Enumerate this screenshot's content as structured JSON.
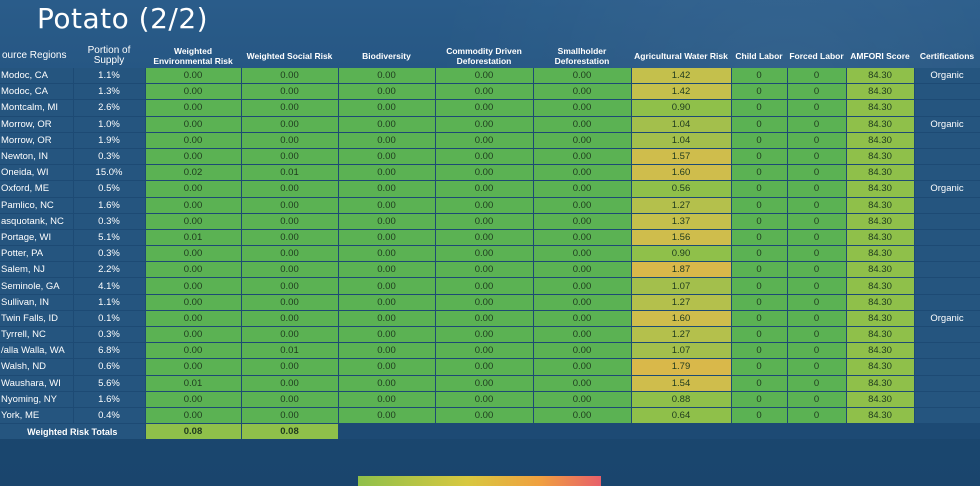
{
  "title": "Potato (2/2)",
  "headers": {
    "region": "ource Regions",
    "portion": "Portion of Supply",
    "env": "Weighted Environmental Risk",
    "social": "Weighted Social Risk",
    "bio": "Biodiversity",
    "cdd": "Commodity Driven Deforestation",
    "sd": "Smallholder Deforestation",
    "water": "Agricultural Water Risk",
    "child": "Child Labor",
    "forced": "Forced Labor",
    "amfori": "AMFORI Score",
    "cert": "Certifications"
  },
  "rows": [
    {
      "region": "Modoc, CA",
      "portion": "1.1%",
      "env": "0.00",
      "social": "0.00",
      "bio": "0.00",
      "cdd": "0.00",
      "sd": "0.00",
      "water": "1.42",
      "child": "0",
      "forced": "0",
      "amfori": "84.30",
      "cert": "Organic"
    },
    {
      "region": "Modoc, CA",
      "portion": "1.3%",
      "env": "0.00",
      "social": "0.00",
      "bio": "0.00",
      "cdd": "0.00",
      "sd": "0.00",
      "water": "1.42",
      "child": "0",
      "forced": "0",
      "amfori": "84.30",
      "cert": ""
    },
    {
      "region": "Montcalm, MI",
      "portion": "2.6%",
      "env": "0.00",
      "social": "0.00",
      "bio": "0.00",
      "cdd": "0.00",
      "sd": "0.00",
      "water": "0.90",
      "child": "0",
      "forced": "0",
      "amfori": "84.30",
      "cert": ""
    },
    {
      "region": "Morrow, OR",
      "portion": "1.0%",
      "env": "0.00",
      "social": "0.00",
      "bio": "0.00",
      "cdd": "0.00",
      "sd": "0.00",
      "water": "1.04",
      "child": "0",
      "forced": "0",
      "amfori": "84.30",
      "cert": "Organic"
    },
    {
      "region": "Morrow, OR",
      "portion": "1.9%",
      "env": "0.00",
      "social": "0.00",
      "bio": "0.00",
      "cdd": "0.00",
      "sd": "0.00",
      "water": "1.04",
      "child": "0",
      "forced": "0",
      "amfori": "84.30",
      "cert": ""
    },
    {
      "region": "Newton, IN",
      "portion": "0.3%",
      "env": "0.00",
      "social": "0.00",
      "bio": "0.00",
      "cdd": "0.00",
      "sd": "0.00",
      "water": "1.57",
      "child": "0",
      "forced": "0",
      "amfori": "84.30",
      "cert": ""
    },
    {
      "region": "Oneida, WI",
      "portion": "15.0%",
      "env": "0.02",
      "social": "0.01",
      "bio": "0.00",
      "cdd": "0.00",
      "sd": "0.00",
      "water": "1.60",
      "child": "0",
      "forced": "0",
      "amfori": "84.30",
      "cert": ""
    },
    {
      "region": "Oxford, ME",
      "portion": "0.5%",
      "env": "0.00",
      "social": "0.00",
      "bio": "0.00",
      "cdd": "0.00",
      "sd": "0.00",
      "water": "0.56",
      "child": "0",
      "forced": "0",
      "amfori": "84.30",
      "cert": "Organic"
    },
    {
      "region": "Pamlico, NC",
      "portion": "1.6%",
      "env": "0.00",
      "social": "0.00",
      "bio": "0.00",
      "cdd": "0.00",
      "sd": "0.00",
      "water": "1.27",
      "child": "0",
      "forced": "0",
      "amfori": "84.30",
      "cert": ""
    },
    {
      "region": "asquotank, NC",
      "portion": "0.3%",
      "env": "0.00",
      "social": "0.00",
      "bio": "0.00",
      "cdd": "0.00",
      "sd": "0.00",
      "water": "1.37",
      "child": "0",
      "forced": "0",
      "amfori": "84.30",
      "cert": ""
    },
    {
      "region": "Portage, WI",
      "portion": "5.1%",
      "env": "0.01",
      "social": "0.00",
      "bio": "0.00",
      "cdd": "0.00",
      "sd": "0.00",
      "water": "1.56",
      "child": "0",
      "forced": "0",
      "amfori": "84.30",
      "cert": ""
    },
    {
      "region": "Potter, PA",
      "portion": "0.3%",
      "env": "0.00",
      "social": "0.00",
      "bio": "0.00",
      "cdd": "0.00",
      "sd": "0.00",
      "water": "0.90",
      "child": "0",
      "forced": "0",
      "amfori": "84.30",
      "cert": ""
    },
    {
      "region": "Salem, NJ",
      "portion": "2.2%",
      "env": "0.00",
      "social": "0.00",
      "bio": "0.00",
      "cdd": "0.00",
      "sd": "0.00",
      "water": "1.87",
      "child": "0",
      "forced": "0",
      "amfori": "84.30",
      "cert": ""
    },
    {
      "region": "Seminole, GA",
      "portion": "4.1%",
      "env": "0.00",
      "social": "0.00",
      "bio": "0.00",
      "cdd": "0.00",
      "sd": "0.00",
      "water": "1.07",
      "child": "0",
      "forced": "0",
      "amfori": "84.30",
      "cert": ""
    },
    {
      "region": "Sullivan, IN",
      "portion": "1.1%",
      "env": "0.00",
      "social": "0.00",
      "bio": "0.00",
      "cdd": "0.00",
      "sd": "0.00",
      "water": "1.27",
      "child": "0",
      "forced": "0",
      "amfori": "84.30",
      "cert": ""
    },
    {
      "region": "Twin Falls, ID",
      "portion": "0.1%",
      "env": "0.00",
      "social": "0.00",
      "bio": "0.00",
      "cdd": "0.00",
      "sd": "0.00",
      "water": "1.60",
      "child": "0",
      "forced": "0",
      "amfori": "84.30",
      "cert": "Organic"
    },
    {
      "region": "Tyrrell, NC",
      "portion": "0.3%",
      "env": "0.00",
      "social": "0.00",
      "bio": "0.00",
      "cdd": "0.00",
      "sd": "0.00",
      "water": "1.27",
      "child": "0",
      "forced": "0",
      "amfori": "84.30",
      "cert": ""
    },
    {
      "region": "/alla Walla, WA",
      "portion": "6.8%",
      "env": "0.00",
      "social": "0.01",
      "bio": "0.00",
      "cdd": "0.00",
      "sd": "0.00",
      "water": "1.07",
      "child": "0",
      "forced": "0",
      "amfori": "84.30",
      "cert": ""
    },
    {
      "region": "Walsh, ND",
      "portion": "0.6%",
      "env": "0.00",
      "social": "0.00",
      "bio": "0.00",
      "cdd": "0.00",
      "sd": "0.00",
      "water": "1.79",
      "child": "0",
      "forced": "0",
      "amfori": "84.30",
      "cert": ""
    },
    {
      "region": "Waushara, WI",
      "portion": "5.6%",
      "env": "0.01",
      "social": "0.00",
      "bio": "0.00",
      "cdd": "0.00",
      "sd": "0.00",
      "water": "1.54",
      "child": "0",
      "forced": "0",
      "amfori": "84.30",
      "cert": ""
    },
    {
      "region": "Nyoming, NY",
      "portion": "1.6%",
      "env": "0.00",
      "social": "0.00",
      "bio": "0.00",
      "cdd": "0.00",
      "sd": "0.00",
      "water": "0.88",
      "child": "0",
      "forced": "0",
      "amfori": "84.30",
      "cert": ""
    },
    {
      "region": "York, ME",
      "portion": "0.4%",
      "env": "0.00",
      "social": "0.00",
      "bio": "0.00",
      "cdd": "0.00",
      "sd": "0.00",
      "water": "0.64",
      "child": "0",
      "forced": "0",
      "amfori": "84.30",
      "cert": ""
    }
  ],
  "totals": {
    "label": "Weighted Risk Totals",
    "env": "0.08",
    "social": "0.08"
  },
  "colors": {
    "low_risk": "#5bb253",
    "medium_low": "#8fc04a",
    "medium": "#c9c24a",
    "medium_high": "#d8b848",
    "high": "#e8606a"
  }
}
